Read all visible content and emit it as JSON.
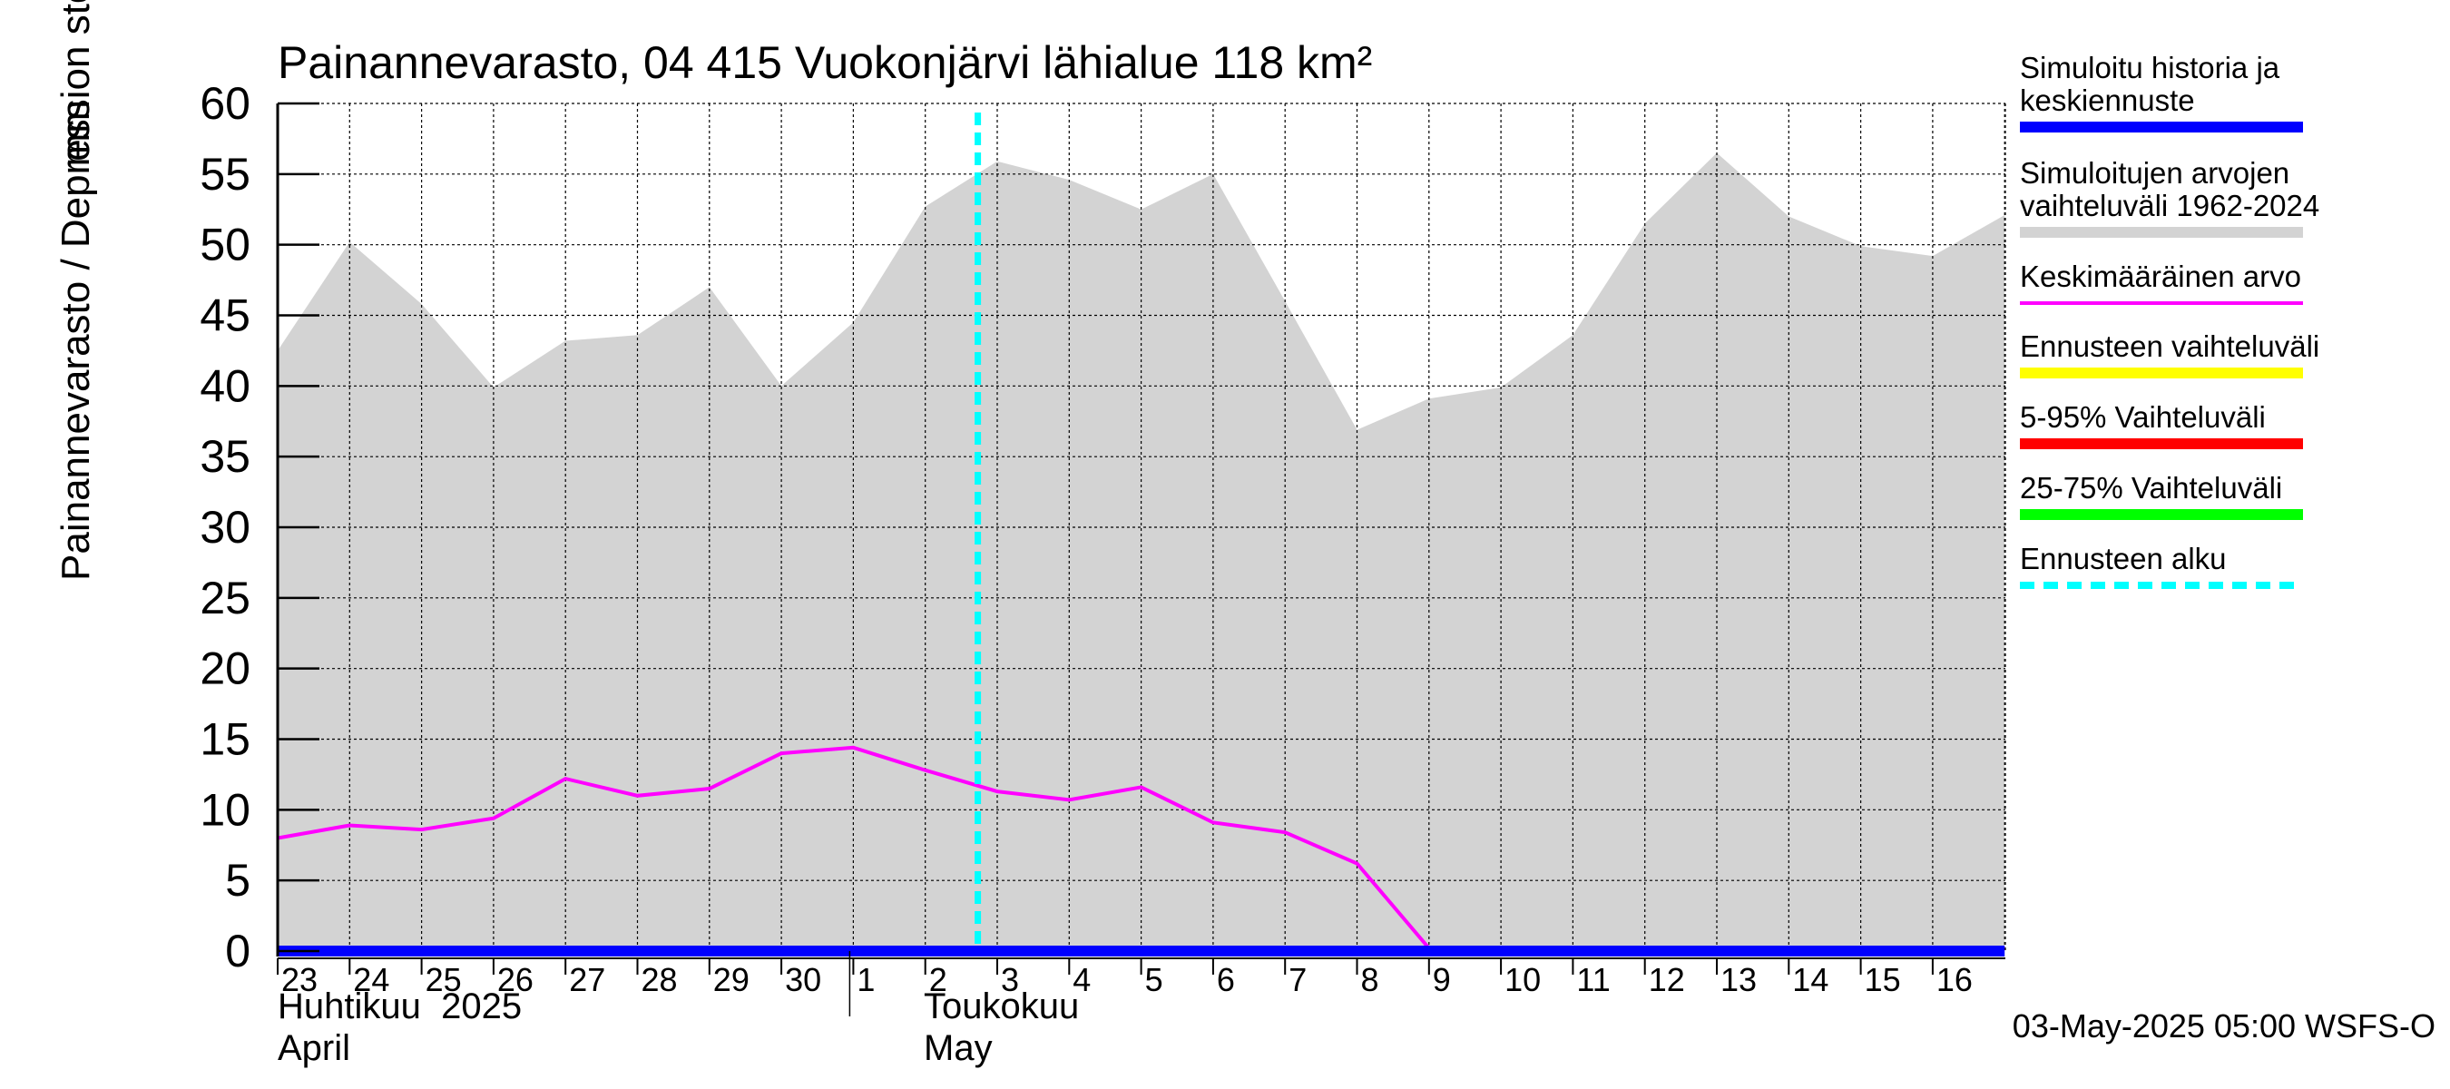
{
  "chart_data": {
    "type": "area",
    "title": "Painannevarasto, 04 415 Vuokonjärvi lähialue 118 km²",
    "ylabel": "Painannevarasto / Depression storage",
    "yunit": "mm",
    "ylim": [
      0,
      60
    ],
    "yticks": [
      0,
      5,
      10,
      15,
      20,
      25,
      30,
      35,
      40,
      45,
      50,
      55,
      60
    ],
    "grid": true,
    "x_dates": [
      "04-23",
      "04-24",
      "04-25",
      "04-26",
      "04-27",
      "04-28",
      "04-29",
      "04-30",
      "05-01",
      "05-02",
      "05-03",
      "05-04",
      "05-05",
      "05-06",
      "05-07",
      "05-08",
      "05-09",
      "05-10",
      "05-11",
      "05-12",
      "05-13",
      "05-14",
      "05-15",
      "05-16",
      "05-17"
    ],
    "x_tick_labels": [
      "23",
      "24",
      "25",
      "26",
      "27",
      "28",
      "29",
      "30",
      "1",
      "2",
      "3",
      "4",
      "5",
      "6",
      "7",
      "8",
      "9",
      "10",
      "11",
      "12",
      "13",
      "14",
      "15",
      "16"
    ],
    "month_labels": [
      {
        "fi": "Huhtikuu  2025",
        "en": "April"
      },
      {
        "fi": "Toukokuu",
        "en": "May"
      }
    ],
    "forecast_start_day_index": 10,
    "series": [
      {
        "name": "Simuloitujen arvojen vaihteluväli 1962-2024",
        "type": "band",
        "color": "#d3d3d3",
        "upper": [
          42.5,
          50.2,
          45.8,
          39.9,
          43.2,
          43.6,
          47.0,
          40.0,
          44.5,
          52.7,
          55.9,
          54.6,
          52.5,
          55.0,
          46.0,
          36.9,
          39.1,
          39.9,
          43.6,
          51.5,
          56.5,
          52.0,
          49.9,
          49.2,
          52.1
        ],
        "lower": [
          0,
          0,
          0,
          0,
          0,
          0,
          0,
          0,
          0,
          0,
          0,
          0,
          0,
          0,
          0,
          0,
          0,
          0,
          0,
          0,
          0,
          0,
          0,
          0,
          0
        ]
      },
      {
        "name": "Keskimääräinen arvo",
        "type": "line",
        "color": "#ff00ff",
        "values": [
          8.0,
          8.9,
          8.6,
          9.4,
          12.2,
          11.0,
          11.5,
          14.0,
          14.4,
          12.8,
          11.3,
          10.7,
          11.6,
          9.1,
          8.4,
          6.2,
          0.2,
          0.2,
          0.2,
          0.2,
          0.2,
          0.2,
          0.2,
          0.2,
          0.2
        ]
      },
      {
        "name": "Simuloitu historia ja keskiennuste",
        "type": "line",
        "color": "#0000ff",
        "values": [
          0,
          0,
          0,
          0,
          0,
          0,
          0,
          0,
          0,
          0,
          0,
          0,
          0,
          0,
          0,
          0,
          0,
          0,
          0,
          0,
          0,
          0,
          0,
          0,
          0
        ]
      }
    ],
    "legend": {
      "placement": "right",
      "items": [
        {
          "label_lines": [
            "Simuloitu historia ja",
            "keskiennuste"
          ],
          "color": "#0000ff",
          "style": "thick"
        },
        {
          "label_lines": [
            "Simuloitujen arvojen",
            "vaihteluväli 1962-2024"
          ],
          "color": "#d3d3d3",
          "style": "thick"
        },
        {
          "label_lines": [
            "Keskimääräinen arvo"
          ],
          "color": "#ff00ff",
          "style": "thin"
        },
        {
          "label_lines": [
            "Ennusteen vaihteluväli"
          ],
          "color": "#ffff00",
          "style": "thick"
        },
        {
          "label_lines": [
            "5-95% Vaihteluväli"
          ],
          "color": "#ff0000",
          "style": "thick"
        },
        {
          "label_lines": [
            "25-75% Vaihteluväli"
          ],
          "color": "#00ff00",
          "style": "thick"
        },
        {
          "label_lines": [
            "Ennusteen alku"
          ],
          "color": "#00ffff",
          "style": "dashed"
        }
      ]
    },
    "footer": "03-May-2025 05:00 WSFS-O"
  }
}
